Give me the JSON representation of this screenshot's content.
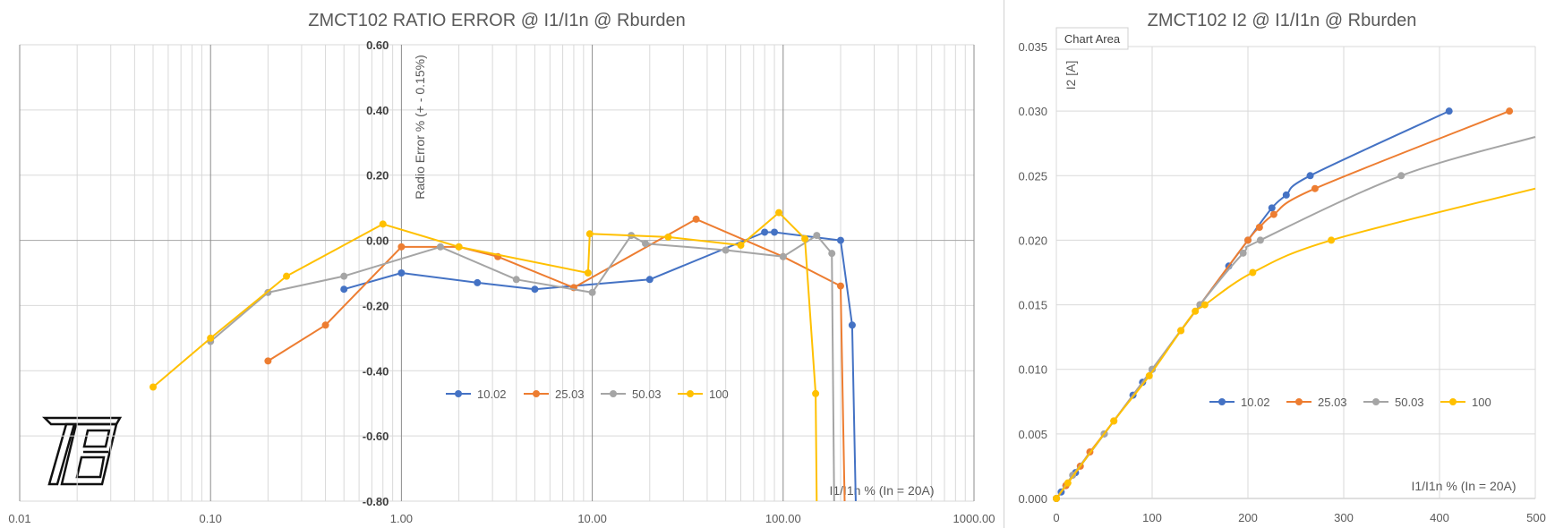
{
  "colors": {
    "s1": "#4472C4",
    "s2": "#ED7D31",
    "s3": "#A5A5A5",
    "s4": "#FFC000",
    "grid": "#d9d9d9",
    "majorgrid": "#8c8c8c",
    "text": "#595959"
  },
  "chart_data": [
    {
      "type": "line",
      "title": "ZMCT102 RATIO ERROR @ I1/I1n @ Rburden",
      "xlabel": "I1/I1n % (In = 20A)",
      "ylabel": "Radio Error %  (+ - 0.15%)",
      "xscale": "log",
      "xlim": [
        0.01,
        1000
      ],
      "ylim": [
        -0.8,
        0.6
      ],
      "x_ticks": [
        0.01,
        0.1,
        1,
        10,
        100,
        1000
      ],
      "x_tick_labels": [
        "0.01",
        "0.10",
        "1.00",
        "10.00",
        "100.00",
        "1000.00"
      ],
      "y_ticks": [
        -0.8,
        -0.6,
        -0.4,
        -0.2,
        0,
        0.2,
        0.4,
        0.6
      ],
      "y_tick_labels": [
        "-0.80",
        "-0.60",
        "-0.40",
        "-0.20",
        "0.00",
        "0.20",
        "0.40",
        "0.60"
      ],
      "legend_position": "center",
      "series": [
        {
          "name": "10.02",
          "points": [
            [
              0.5,
              -0.15
            ],
            [
              1,
              -0.1
            ],
            [
              2.5,
              -0.13
            ],
            [
              5,
              -0.15
            ],
            [
              20,
              -0.12
            ],
            [
              80,
              0.025
            ],
            [
              90,
              0.025
            ],
            [
              200,
              0
            ],
            [
              230,
              -0.26
            ],
            [
              240,
              -0.8
            ]
          ]
        },
        {
          "name": "25.03",
          "points": [
            [
              0.2,
              -0.37
            ],
            [
              0.4,
              -0.26
            ],
            [
              1,
              -0.02
            ],
            [
              2,
              -0.02
            ],
            [
              3.2,
              -0.05
            ],
            [
              8,
              -0.145
            ],
            [
              35,
              0.065
            ],
            [
              100,
              -0.05
            ],
            [
              200,
              -0.14
            ],
            [
              210,
              -0.8
            ]
          ]
        },
        {
          "name": "50.03",
          "points": [
            [
              0.1,
              -0.31
            ],
            [
              0.2,
              -0.16
            ],
            [
              0.5,
              -0.11
            ],
            [
              1.6,
              -0.02
            ],
            [
              4,
              -0.12
            ],
            [
              10,
              -0.16
            ],
            [
              16,
              0.015
            ],
            [
              19,
              -0.01
            ],
            [
              50,
              -0.03
            ],
            [
              100,
              -0.05
            ],
            [
              150,
              0.015
            ],
            [
              180,
              -0.04
            ],
            [
              185,
              -0.8
            ]
          ]
        },
        {
          "name": "100",
          "points": [
            [
              0.05,
              -0.45
            ],
            [
              0.1,
              -0.3
            ],
            [
              0.25,
              -0.11
            ],
            [
              0.8,
              0.05
            ],
            [
              2,
              -0.02
            ],
            [
              9.5,
              -0.1
            ],
            [
              9.7,
              0.02
            ],
            [
              25,
              0.01
            ],
            [
              60,
              -0.015
            ],
            [
              95,
              0.085
            ],
            [
              130,
              0.005
            ],
            [
              148,
              -0.47
            ],
            [
              150,
              -0.8
            ]
          ]
        }
      ]
    },
    {
      "type": "line",
      "title": "ZMCT102 I2 @ I1/I1n @ Rburden",
      "xlabel": "I1/I1n % (In = 20A)",
      "ylabel": "I2 [A]",
      "badge": "Chart Area",
      "xlim": [
        0,
        500
      ],
      "ylim": [
        0,
        0.035
      ],
      "x_ticks": [
        0,
        100,
        200,
        300,
        400,
        500
      ],
      "x_tick_labels": [
        "0",
        "100",
        "200",
        "300",
        "400",
        "500"
      ],
      "y_ticks": [
        0,
        0.005,
        0.01,
        0.015,
        0.02,
        0.025,
        0.03,
        0.035
      ],
      "y_tick_labels": [
        "0.000",
        "0.005",
        "0.010",
        "0.015",
        "0.020",
        "0.025",
        "0.030",
        "0.035"
      ],
      "legend_position": "center-right",
      "series": [
        {
          "name": "10.02",
          "points": [
            [
              0,
              0
            ],
            [
              5,
              0.0005
            ],
            [
              10,
              0.001
            ],
            [
              20,
              0.002
            ],
            [
              50,
              0.005
            ],
            [
              80,
              0.008
            ],
            [
              90,
              0.009
            ],
            [
              100,
              0.01
            ],
            [
              150,
              0.015
            ],
            [
              180,
              0.018
            ],
            [
              200,
              0.02
            ],
            [
              225,
              0.0225
            ],
            [
              240,
              0.0235
            ],
            [
              265,
              0.025
            ],
            [
              410,
              0.03
            ]
          ]
        },
        {
          "name": "25.03",
          "points": [
            [
              0,
              0
            ],
            [
              10,
              0.001
            ],
            [
              25,
              0.0025
            ],
            [
              35,
              0.0036
            ],
            [
              60,
              0.006
            ],
            [
              130,
              0.013
            ],
            [
              150,
              0.015
            ],
            [
              200,
              0.02
            ],
            [
              212,
              0.021
            ],
            [
              227,
              0.022
            ],
            [
              270,
              0.024
            ],
            [
              473,
              0.03
            ]
          ]
        },
        {
          "name": "50.03",
          "points": [
            [
              0,
              0
            ],
            [
              17,
              0.0018
            ],
            [
              50,
              0.005
            ],
            [
              100,
              0.01
            ],
            [
              150,
              0.015
            ],
            [
              195,
              0.019
            ],
            [
              213,
              0.02
            ],
            [
              360,
              0.025
            ],
            [
              500,
              0.028
            ]
          ]
        },
        {
          "name": "100",
          "points": [
            [
              0,
              0
            ],
            [
              12,
              0.0012
            ],
            [
              60,
              0.006
            ],
            [
              97,
              0.0095
            ],
            [
              130,
              0.013
            ],
            [
              145,
              0.0145
            ],
            [
              155,
              0.015
            ],
            [
              205,
              0.0175
            ],
            [
              287,
              0.02
            ],
            [
              500,
              0.024
            ]
          ]
        }
      ]
    }
  ]
}
